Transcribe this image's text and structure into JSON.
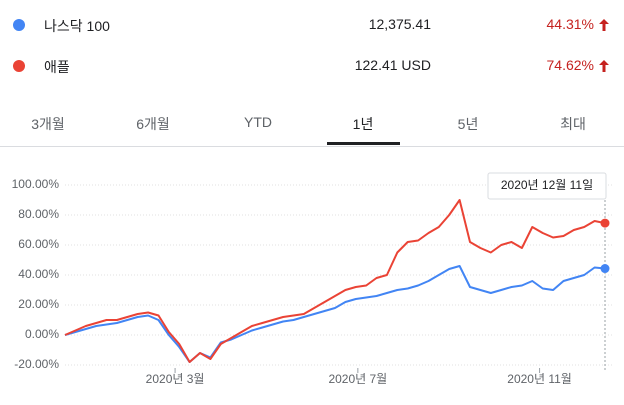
{
  "legend_rows": [
    {
      "name": "나스닥 100",
      "price": "12,375.41",
      "change": "44.31%",
      "color": "#4285f4"
    },
    {
      "name": "애플",
      "price": "122.41 USD",
      "change": "74.62%",
      "color": "#ea4335"
    }
  ],
  "tabs": [
    "3개월",
    "6개월",
    "YTD",
    "1년",
    "5년",
    "최대"
  ],
  "selected_tab": "1년",
  "chart_data": {
    "type": "line",
    "tooltip": "2020년 12월 11일",
    "xlim": [
      0,
      52
    ],
    "xticks": [
      {
        "value": 10.6,
        "label": "2020년 3월"
      },
      {
        "value": 28.2,
        "label": "2020년 7월"
      },
      {
        "value": 45.7,
        "label": "2020년 11월"
      }
    ],
    "ylim": [
      -20,
      100
    ],
    "yticks": [
      {
        "value": -20,
        "label": "-20.00%"
      },
      {
        "value": 0,
        "label": "0.00%"
      },
      {
        "value": 20,
        "label": "20.00%"
      },
      {
        "value": 40,
        "label": "40.00%"
      },
      {
        "value": 60,
        "label": "60.00%"
      },
      {
        "value": 80,
        "label": "80.00%"
      },
      {
        "value": 100,
        "label": "100.00%"
      }
    ],
    "grid": true,
    "series": [
      {
        "name": "나스닥 100",
        "color": "#4285f4",
        "values": [
          0,
          2,
          4,
          6,
          7,
          8,
          10,
          12,
          13,
          10,
          0,
          -8,
          -18,
          -12,
          -15,
          -5,
          -3,
          0,
          3,
          5,
          7,
          9,
          10,
          12,
          14,
          16,
          18,
          22,
          24,
          25,
          26,
          28,
          30,
          31,
          33,
          36,
          40,
          44,
          46,
          32,
          30,
          28,
          30,
          32,
          33,
          36,
          31,
          30,
          36,
          38,
          40,
          45,
          44.31
        ]
      },
      {
        "name": "애플",
        "color": "#ea4335",
        "values": [
          0,
          3,
          6,
          8,
          10,
          10,
          12,
          14,
          15,
          13,
          2,
          -6,
          -18,
          -12,
          -16,
          -6,
          -2,
          2,
          6,
          8,
          10,
          12,
          13,
          14,
          18,
          22,
          26,
          30,
          32,
          33,
          38,
          40,
          55,
          62,
          63,
          68,
          72,
          80,
          90,
          62,
          58,
          55,
          60,
          62,
          58,
          72,
          68,
          65,
          66,
          70,
          72,
          76,
          74.62
        ]
      }
    ]
  }
}
